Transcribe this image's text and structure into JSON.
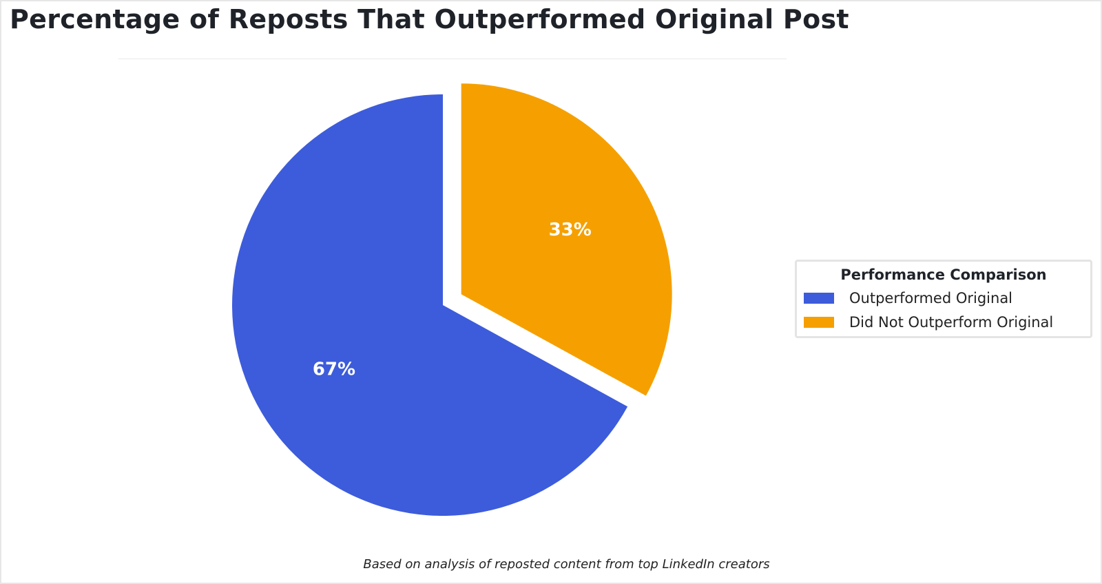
{
  "title": "Percentage of Reposts That Outperformed Original Post",
  "caption": "Based on analysis of reposted content from top LinkedIn creators",
  "legend": {
    "title": "Performance Comparison"
  },
  "chart_data": {
    "type": "pie",
    "title": "Percentage of Reposts That Outperformed Original Post",
    "categories": [
      "Outperformed Original",
      "Did Not Outperform Original"
    ],
    "values": [
      67,
      33
    ],
    "labels": [
      "67%",
      "33%"
    ],
    "colors": [
      "#3d5cdb",
      "#f5a000"
    ],
    "exploded": [
      false,
      true
    ],
    "start": "top, counter-clockwise from 12 o'clock for the first slice",
    "legend": {
      "title": "Performance Comparison",
      "placement": "right"
    }
  }
}
